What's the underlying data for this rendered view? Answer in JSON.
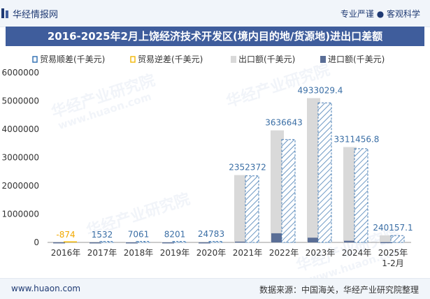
{
  "header": {
    "brand": "华经情报网",
    "tagline": "专业严谨 ● 客观科学"
  },
  "chart_data": {
    "type": "bar",
    "title": "2016-2025年2月上饶经济技术开发区(境内目的地/货源地)进出口差额",
    "categories": [
      "2016年",
      "2017年",
      "2018年",
      "2019年",
      "2020年",
      "2021年",
      "2022年",
      "2023年",
      "2024年",
      "2025年\n1-2月"
    ],
    "series": [
      {
        "name": "贸易顺差(千美元)",
        "values": [
          null,
          1532,
          7061,
          8201,
          24783,
          2352372,
          3636643,
          4933029.4,
          3311456.8,
          240157.1
        ],
        "color": "#2b6cb0"
      },
      {
        "name": "贸易逆差(千美元)",
        "values": [
          -874,
          null,
          null,
          null,
          null,
          null,
          null,
          null,
          null,
          null
        ],
        "color": "#f2b705"
      },
      {
        "name": "出口额(千美元)",
        "values": [
          2000,
          3500,
          9000,
          11000,
          27000,
          2380000,
          3960000,
          5100000,
          3370000,
          250000
        ],
        "color": "#d9d9d9"
      },
      {
        "name": "进口额(千美元)",
        "values": [
          2874,
          1968,
          1939,
          2799,
          2217,
          27628,
          323357,
          166970.6,
          58543.2,
          9842.9
        ],
        "color": "#5a6e96"
      }
    ],
    "data_labels": [
      "-874",
      "1532",
      "7061",
      "8201",
      "24783",
      "2352372",
      "3636643",
      "4933029.4",
      "3311456.8",
      "240157.1"
    ],
    "yticks": [
      "0",
      "1000000",
      "2000000",
      "3000000",
      "4000000",
      "5000000",
      "6000000"
    ],
    "ylim": [
      0,
      6000000
    ],
    "xlabel": "",
    "ylabel": ""
  },
  "watermark": "华经产业研究院",
  "watermark_url": "www.huaon.com",
  "footer": {
    "website": "www.huaon.com",
    "source": "数据来源：中国海关，华经产业研究院整理"
  }
}
